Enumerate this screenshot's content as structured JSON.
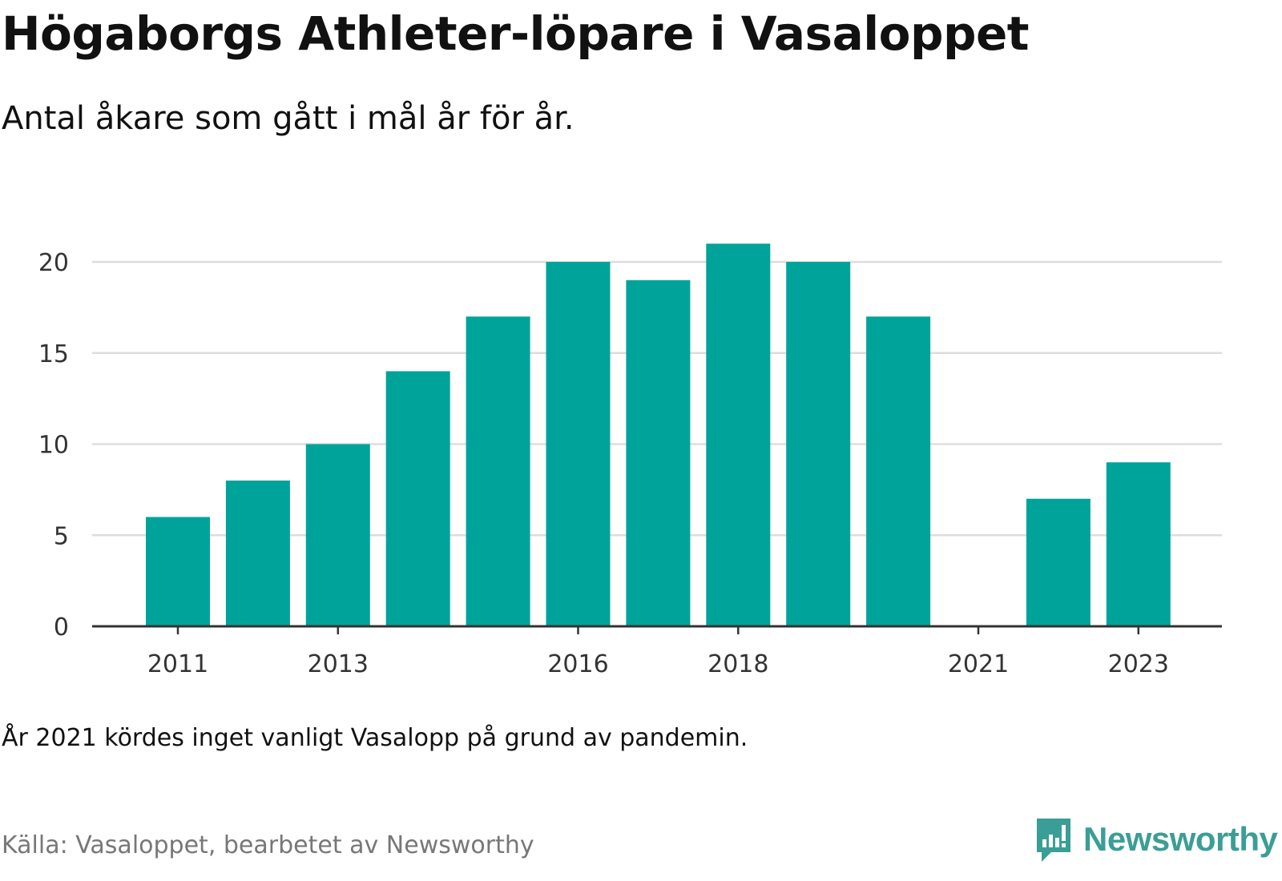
{
  "header": {
    "title": "Högaborgs Athleter-löpare i Vasaloppet",
    "subtitle": "Antal åkare som gått i mål år för år."
  },
  "footer": {
    "note": "År 2021 kördes inget vanligt Vasalopp på grund av pandemin.",
    "source": "Källa: Vasaloppet, bearbetet av Newsworthy",
    "brand": "Newsworthy"
  },
  "colors": {
    "bar": "#00a39a",
    "grid": "#dddddd",
    "axis": "#333333",
    "brand": "#3a9e96"
  },
  "chart_data": {
    "type": "bar",
    "categories": [
      "2011",
      "2012",
      "2013",
      "2014",
      "2015",
      "2016",
      "2017",
      "2018",
      "2019",
      "2020",
      "2021",
      "2022",
      "2023"
    ],
    "values": [
      6,
      8,
      10,
      14,
      17,
      20,
      19,
      21,
      20,
      17,
      null,
      7,
      9
    ],
    "x_tick_labels": [
      "2011",
      "2013",
      "2016",
      "2018",
      "2021",
      "2023"
    ],
    "y_ticks": [
      0,
      5,
      10,
      15,
      20
    ],
    "ylim": [
      0,
      21
    ],
    "grid": true,
    "legend": "none"
  }
}
